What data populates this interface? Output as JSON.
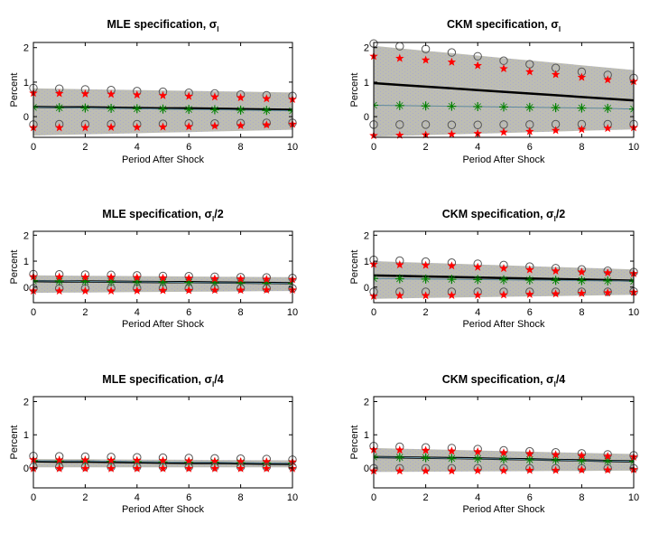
{
  "chart_data": [
    {
      "type": "line",
      "title": "MLE specification, σ",
      "title_subscript": "l",
      "title_suffix": "",
      "xlabel": "Period After Shock",
      "ylabel": "Percent",
      "xlim": [
        0,
        10
      ],
      "ylim": [
        -0.6,
        2.15
      ],
      "xticks": [
        0,
        2,
        4,
        6,
        8,
        10
      ],
      "yticks": [
        0,
        1,
        2
      ],
      "x": [
        0,
        1,
        2,
        3,
        4,
        5,
        6,
        7,
        8,
        9,
        10
      ],
      "band": {
        "name": "confidence-band",
        "upper_start": 0.82,
        "upper_end": 0.7,
        "lower_start": -0.55,
        "lower_end": -0.38
      },
      "series": [
        {
          "name": "point-estimate",
          "style": "line-black",
          "values": [
            0.28,
            0.27,
            0.27,
            0.26,
            0.25,
            0.24,
            0.24,
            0.23,
            0.22,
            0.21,
            0.2
          ]
        },
        {
          "name": "green-asterisk",
          "style": "asterisk-green",
          "values": [
            0.27,
            0.26,
            0.25,
            0.24,
            0.23,
            0.22,
            0.21,
            0.2,
            0.19,
            0.18,
            0.17
          ]
        },
        {
          "name": "upper-circles",
          "style": "circle-gray",
          "values": [
            0.83,
            0.81,
            0.79,
            0.77,
            0.74,
            0.72,
            0.69,
            0.67,
            0.64,
            0.62,
            0.6
          ]
        },
        {
          "name": "upper-stars",
          "style": "star-red",
          "values": [
            0.68,
            0.67,
            0.66,
            0.65,
            0.63,
            0.61,
            0.59,
            0.57,
            0.55,
            0.52,
            0.5
          ]
        },
        {
          "name": "lower-circles",
          "style": "circle-gray",
          "values": [
            -0.23,
            -0.22,
            -0.22,
            -0.22,
            -0.22,
            -0.21,
            -0.2,
            -0.2,
            -0.19,
            -0.18,
            -0.18
          ]
        },
        {
          "name": "lower-stars",
          "style": "star-red",
          "values": [
            -0.32,
            -0.32,
            -0.32,
            -0.31,
            -0.31,
            -0.3,
            -0.29,
            -0.27,
            -0.26,
            -0.24,
            -0.22
          ]
        }
      ]
    },
    {
      "type": "line",
      "title": "CKM specification, σ",
      "title_subscript": "l",
      "title_suffix": "",
      "xlabel": "Period After Shock",
      "ylabel": "Percent",
      "xlim": [
        0,
        10
      ],
      "ylim": [
        -0.6,
        2.15
      ],
      "xticks": [
        0,
        2,
        4,
        6,
        8,
        10
      ],
      "yticks": [
        0,
        1,
        2
      ],
      "x": [
        0,
        1,
        2,
        3,
        4,
        5,
        6,
        7,
        8,
        9,
        10
      ],
      "band": {
        "name": "confidence-band",
        "upper_start": 2.05,
        "upper_end": 1.35,
        "lower_start": -0.58,
        "lower_end": -0.37
      },
      "series": [
        {
          "name": "point-estimate",
          "style": "line-black",
          "values": [
            0.97,
            0.92,
            0.87,
            0.82,
            0.77,
            0.72,
            0.67,
            0.62,
            0.57,
            0.52,
            0.47
          ]
        },
        {
          "name": "green-asterisk",
          "style": "asterisk-green",
          "values": [
            0.33,
            0.32,
            0.31,
            0.3,
            0.29,
            0.28,
            0.27,
            0.26,
            0.25,
            0.24,
            0.22
          ]
        },
        {
          "name": "upper-circles",
          "style": "circle-gray",
          "values": [
            2.12,
            2.04,
            1.96,
            1.86,
            1.75,
            1.62,
            1.52,
            1.41,
            1.3,
            1.21,
            1.12
          ]
        },
        {
          "name": "upper-stars",
          "style": "star-red",
          "values": [
            1.75,
            1.69,
            1.64,
            1.58,
            1.48,
            1.39,
            1.3,
            1.22,
            1.14,
            1.07,
            1.02
          ]
        },
        {
          "name": "lower-circles",
          "style": "circle-gray",
          "values": [
            -0.23,
            -0.23,
            -0.23,
            -0.24,
            -0.24,
            -0.23,
            -0.23,
            -0.22,
            -0.22,
            -0.22,
            -0.22
          ]
        },
        {
          "name": "lower-stars",
          "style": "star-red",
          "values": [
            -0.55,
            -0.54,
            -0.53,
            -0.51,
            -0.49,
            -0.45,
            -0.43,
            -0.4,
            -0.37,
            -0.34,
            -0.32
          ]
        }
      ]
    },
    {
      "type": "line",
      "title": "MLE specification, σ",
      "title_subscript": "l",
      "title_suffix": "/2",
      "xlabel": "Period After Shock",
      "ylabel": "Percent",
      "xlim": [
        0,
        10
      ],
      "ylim": [
        -0.6,
        2.15
      ],
      "xticks": [
        0,
        2,
        4,
        6,
        8,
        10
      ],
      "yticks": [
        0,
        1,
        2
      ],
      "x": [
        0,
        1,
        2,
        3,
        4,
        5,
        6,
        7,
        8,
        9,
        10
      ],
      "band": {
        "name": "confidence-band",
        "upper_start": 0.45,
        "upper_end": 0.38,
        "lower_start": -0.22,
        "lower_end": -0.15
      },
      "series": [
        {
          "name": "point-estimate",
          "style": "line-black",
          "values": [
            0.23,
            0.22,
            0.22,
            0.21,
            0.2,
            0.19,
            0.19,
            0.18,
            0.17,
            0.16,
            0.15
          ]
        },
        {
          "name": "green-asterisk",
          "style": "asterisk-green",
          "values": [
            0.24,
            0.23,
            0.22,
            0.21,
            0.2,
            0.19,
            0.18,
            0.17,
            0.16,
            0.15,
            0.14
          ]
        },
        {
          "name": "upper-circles",
          "style": "circle-gray",
          "values": [
            0.5,
            0.49,
            0.48,
            0.47,
            0.45,
            0.43,
            0.42,
            0.4,
            0.38,
            0.37,
            0.35
          ]
        },
        {
          "name": "upper-stars",
          "style": "star-red",
          "values": [
            0.4,
            0.39,
            0.38,
            0.38,
            0.37,
            0.35,
            0.34,
            0.32,
            0.31,
            0.3,
            0.29
          ]
        },
        {
          "name": "lower-circles",
          "style": "circle-gray",
          "values": [
            -0.05,
            -0.05,
            -0.05,
            -0.05,
            -0.05,
            -0.05,
            -0.05,
            -0.05,
            -0.05,
            -0.05,
            -0.05
          ]
        },
        {
          "name": "lower-stars",
          "style": "star-red",
          "values": [
            -0.15,
            -0.15,
            -0.15,
            -0.15,
            -0.14,
            -0.13,
            -0.13,
            -0.12,
            -0.12,
            -0.11,
            -0.11
          ]
        }
      ]
    },
    {
      "type": "line",
      "title": "CKM specification, σ",
      "title_subscript": "l",
      "title_suffix": "/2",
      "xlabel": "Period After Shock",
      "ylabel": "Percent",
      "xlim": [
        0,
        10
      ],
      "ylim": [
        -0.6,
        2.15
      ],
      "xticks": [
        0,
        2,
        4,
        6,
        8,
        10
      ],
      "yticks": [
        0,
        1,
        2
      ],
      "x": [
        0,
        1,
        2,
        3,
        4,
        5,
        6,
        7,
        8,
        9,
        10
      ],
      "band": {
        "name": "confidence-band",
        "upper_start": 1.0,
        "upper_end": 0.68,
        "lower_start": -0.45,
        "lower_end": -0.3
      },
      "series": [
        {
          "name": "point-estimate",
          "style": "line-black",
          "values": [
            0.45,
            0.43,
            0.41,
            0.39,
            0.37,
            0.35,
            0.33,
            0.31,
            0.29,
            0.27,
            0.25
          ]
        },
        {
          "name": "green-asterisk",
          "style": "asterisk-green",
          "values": [
            0.33,
            0.32,
            0.31,
            0.3,
            0.29,
            0.28,
            0.27,
            0.26,
            0.25,
            0.24,
            0.23
          ]
        },
        {
          "name": "upper-circles",
          "style": "circle-gray",
          "values": [
            1.05,
            1.02,
            0.98,
            0.94,
            0.9,
            0.85,
            0.79,
            0.73,
            0.68,
            0.63,
            0.58
          ]
        },
        {
          "name": "upper-stars",
          "style": "star-red",
          "values": [
            0.88,
            0.86,
            0.84,
            0.82,
            0.77,
            0.72,
            0.67,
            0.62,
            0.58,
            0.55,
            0.52
          ]
        },
        {
          "name": "lower-circles",
          "style": "circle-gray",
          "values": [
            -0.18,
            -0.18,
            -0.18,
            -0.18,
            -0.18,
            -0.18,
            -0.18,
            -0.18,
            -0.18,
            -0.18,
            -0.17
          ]
        },
        {
          "name": "lower-stars",
          "style": "star-red",
          "values": [
            -0.35,
            -0.33,
            -0.33,
            -0.32,
            -0.31,
            -0.3,
            -0.28,
            -0.26,
            -0.24,
            -0.22,
            -0.2
          ]
        }
      ]
    },
    {
      "type": "line",
      "title": "MLE specification, σ",
      "title_subscript": "l",
      "title_suffix": "/4",
      "xlabel": "Period After Shock",
      "ylabel": "Percent",
      "xlim": [
        0,
        10
      ],
      "ylim": [
        -0.6,
        2.15
      ],
      "xticks": [
        0,
        2,
        4,
        6,
        8,
        10
      ],
      "yticks": [
        0,
        1,
        2
      ],
      "x": [
        0,
        1,
        2,
        3,
        4,
        5,
        6,
        7,
        8,
        9,
        10
      ],
      "band": {
        "name": "confidence-band",
        "upper_start": 0.27,
        "upper_end": 0.23,
        "lower_start": 0.02,
        "lower_end": 0.02
      },
      "series": [
        {
          "name": "point-estimate",
          "style": "line-black",
          "values": [
            0.2,
            0.19,
            0.19,
            0.18,
            0.17,
            0.16,
            0.15,
            0.15,
            0.14,
            0.13,
            0.12
          ]
        },
        {
          "name": "green-asterisk",
          "style": "asterisk-green",
          "values": [
            0.22,
            0.21,
            0.21,
            0.2,
            0.19,
            0.18,
            0.17,
            0.17,
            0.16,
            0.15,
            0.14
          ]
        },
        {
          "name": "upper-circles",
          "style": "circle-gray",
          "values": [
            0.36,
            0.35,
            0.34,
            0.33,
            0.32,
            0.31,
            0.3,
            0.29,
            0.28,
            0.27,
            0.25
          ]
        },
        {
          "name": "upper-stars",
          "style": "star-red",
          "values": [
            0.25,
            0.24,
            0.24,
            0.23,
            0.23,
            0.22,
            0.21,
            0.2,
            0.19,
            0.19,
            0.18
          ]
        },
        {
          "name": "lower-circles",
          "style": "circle-gray",
          "values": [
            0.03,
            0.03,
            0.03,
            0.03,
            0.03,
            0.03,
            0.03,
            0.03,
            0.03,
            0.03,
            0.03
          ]
        },
        {
          "name": "lower-stars",
          "style": "star-red",
          "values": [
            -0.02,
            -0.02,
            -0.02,
            -0.02,
            -0.02,
            -0.02,
            -0.02,
            -0.02,
            -0.02,
            -0.02,
            -0.02
          ]
        }
      ]
    },
    {
      "type": "line",
      "title": "CKM specification, σ",
      "title_subscript": "l",
      "title_suffix": "/4",
      "xlabel": "Period After Shock",
      "ylabel": "Percent",
      "xlim": [
        0,
        10
      ],
      "ylim": [
        -0.6,
        2.15
      ],
      "xticks": [
        0,
        2,
        4,
        6,
        8,
        10
      ],
      "yticks": [
        0,
        1,
        2
      ],
      "x": [
        0,
        1,
        2,
        3,
        4,
        5,
        6,
        7,
        8,
        9,
        10
      ],
      "band": {
        "name": "confidence-band",
        "upper_start": 0.6,
        "upper_end": 0.42,
        "lower_start": -0.12,
        "lower_end": -0.08
      },
      "series": [
        {
          "name": "point-estimate",
          "style": "line-black",
          "values": [
            0.33,
            0.32,
            0.31,
            0.3,
            0.29,
            0.27,
            0.26,
            0.24,
            0.23,
            0.21,
            0.2
          ]
        },
        {
          "name": "green-asterisk",
          "style": "asterisk-green",
          "values": [
            0.33,
            0.32,
            0.31,
            0.29,
            0.28,
            0.27,
            0.25,
            0.24,
            0.22,
            0.21,
            0.2
          ]
        },
        {
          "name": "upper-circles",
          "style": "circle-gray",
          "values": [
            0.66,
            0.64,
            0.62,
            0.6,
            0.57,
            0.53,
            0.5,
            0.47,
            0.44,
            0.41,
            0.38
          ]
        },
        {
          "name": "upper-stars",
          "style": "star-red",
          "values": [
            0.55,
            0.54,
            0.53,
            0.51,
            0.49,
            0.46,
            0.43,
            0.4,
            0.37,
            0.35,
            0.33
          ]
        },
        {
          "name": "lower-circles",
          "style": "circle-gray",
          "values": [
            -0.01,
            -0.01,
            -0.01,
            -0.01,
            -0.01,
            -0.01,
            -0.01,
            -0.01,
            -0.01,
            -0.01,
            -0.01
          ]
        },
        {
          "name": "lower-stars",
          "style": "star-red",
          "values": [
            -0.09,
            -0.09,
            -0.09,
            -0.09,
            -0.08,
            -0.08,
            -0.07,
            -0.07,
            -0.06,
            -0.06,
            -0.05
          ]
        }
      ]
    }
  ],
  "colors": {
    "band": "#bdbdb3",
    "band_speckle": "#a9a9d0",
    "point_line": "#000000",
    "asterisk": "#008000",
    "asterisk_line": "#5f8a9a",
    "circle": "#555555",
    "star": "#ff0000"
  }
}
